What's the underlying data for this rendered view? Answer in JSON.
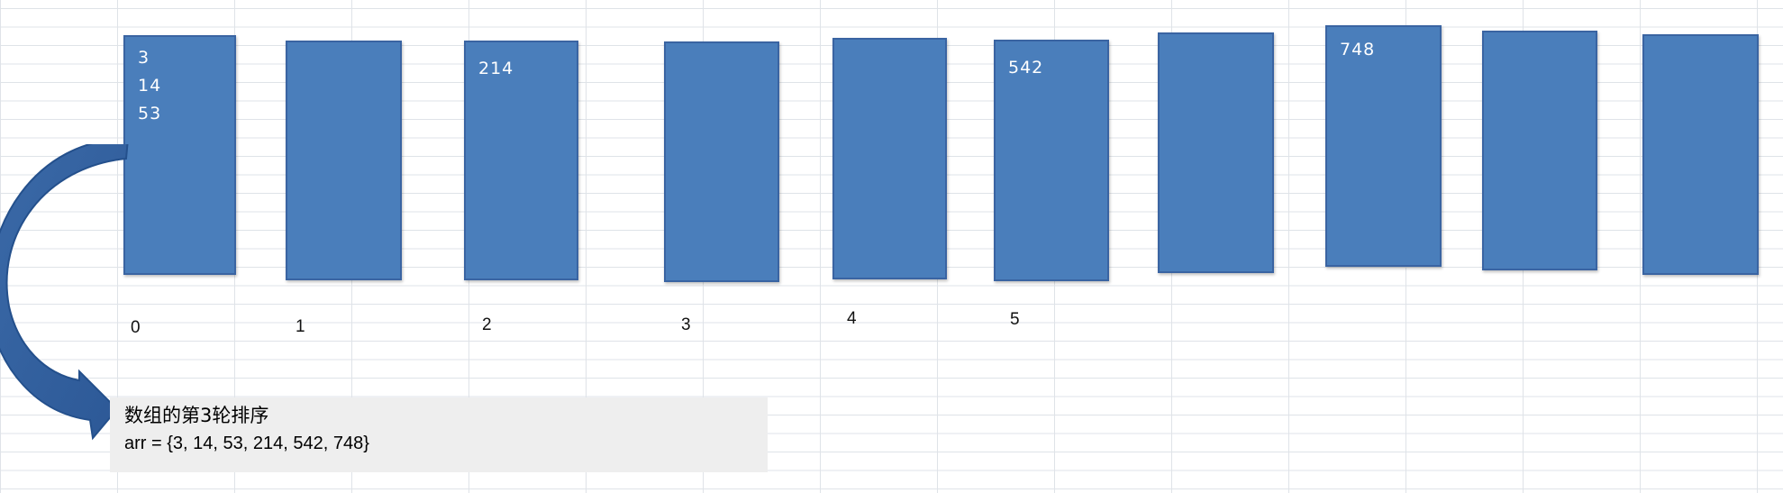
{
  "colors": {
    "bucket_fill": "#4a7ebb",
    "bucket_border": "#3a64a2",
    "caption_bg": "#eeeeee"
  },
  "buckets": [
    {
      "index": "0",
      "values": [
        "3",
        "14",
        "53"
      ]
    },
    {
      "index": "1",
      "values": []
    },
    {
      "index": "2",
      "values": [
        "214"
      ]
    },
    {
      "index": "3",
      "values": []
    },
    {
      "index": "4",
      "values": []
    },
    {
      "index": "5",
      "values": [
        "542"
      ]
    },
    {
      "index": "",
      "values": []
    },
    {
      "index": "",
      "values": [
        "748"
      ]
    },
    {
      "index": "",
      "values": []
    },
    {
      "index": "",
      "values": []
    }
  ],
  "caption": {
    "title": "数组的第3轮排序",
    "array_text": "arr = {3, 14, 53, 214, 542, 748}"
  },
  "icons": {
    "arrow": "curved-arrow-icon"
  }
}
